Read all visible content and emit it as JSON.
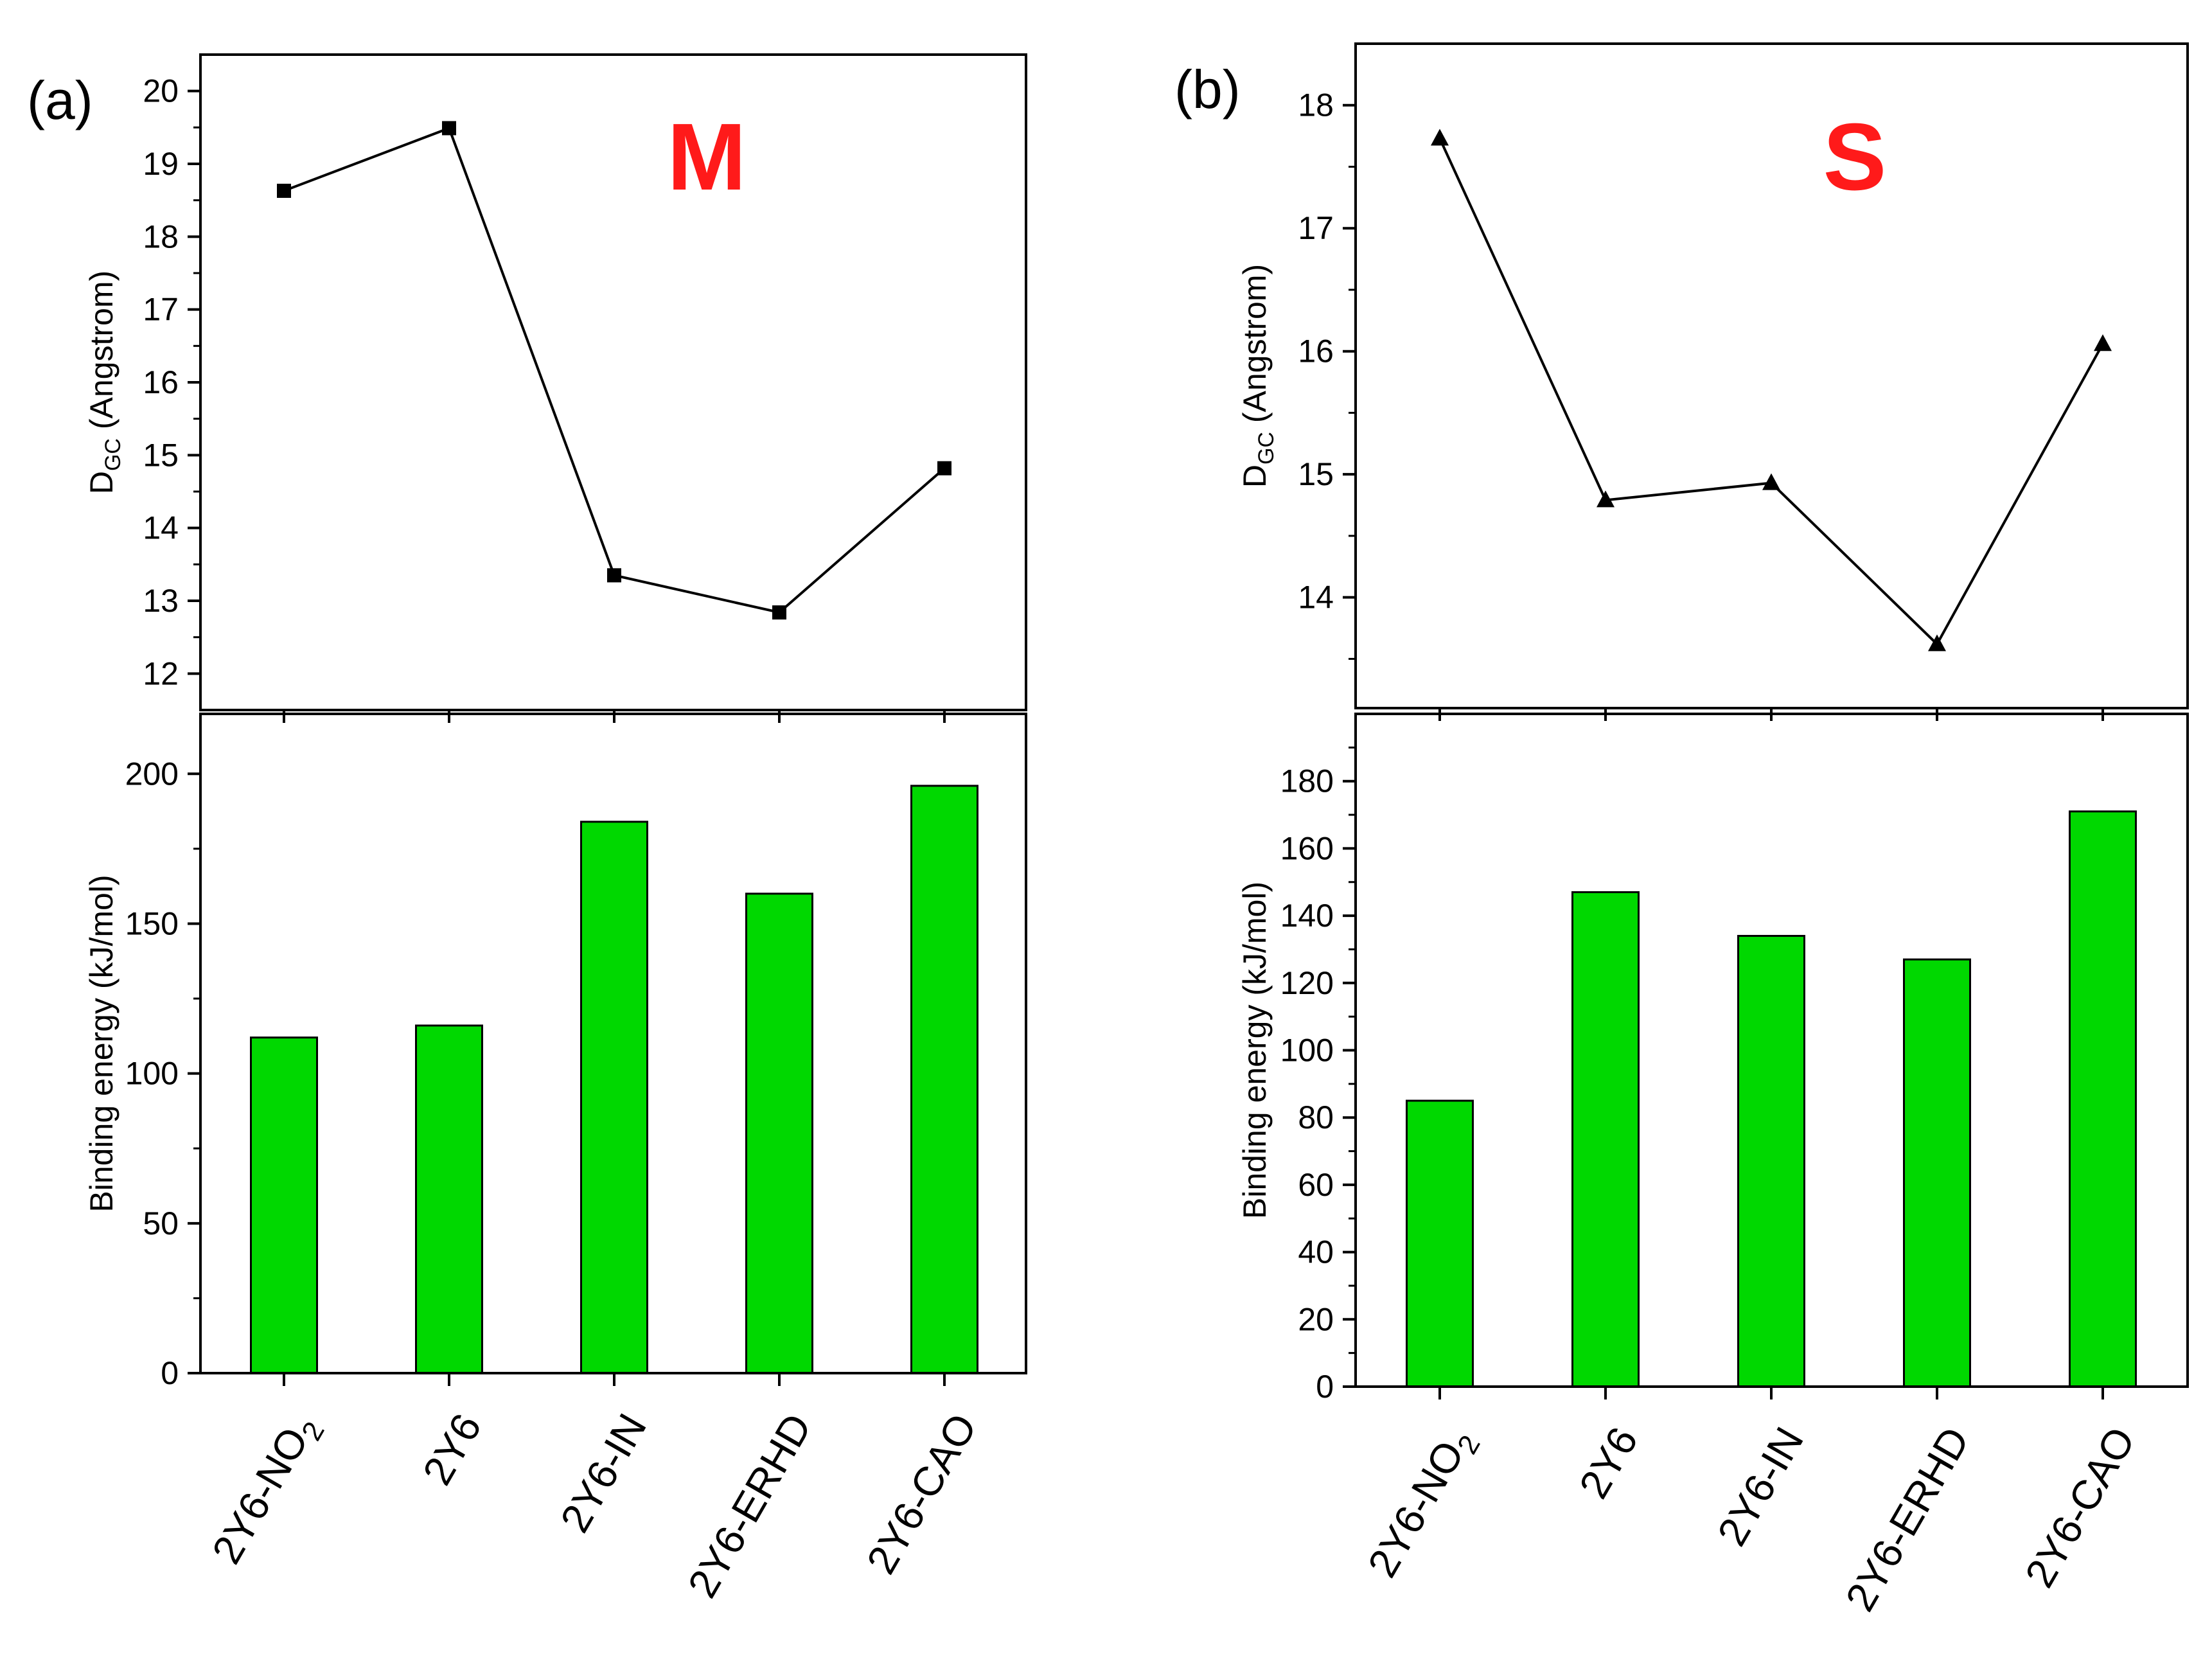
{
  "figure": {
    "panel_a_label": "(a)",
    "panel_b_label": "(b)",
    "panel_a_mark": "M",
    "panel_b_mark": "S",
    "mark_color": "#ff1a1a",
    "bar_color": "#00d800",
    "line_color": "#000000"
  },
  "y_labels": {
    "dgc_main": "D",
    "dgc_sub": "GC",
    "dgc_unit": " (Angstrom)",
    "binding": "Binding energy (kJ/mol)"
  },
  "categories": [
    {
      "main": "2Y6-NO",
      "sub": "2"
    },
    {
      "main": "2Y6",
      "sub": ""
    },
    {
      "main": "2Y6-IN",
      "sub": ""
    },
    {
      "main": "2Y6-ERHD",
      "sub": ""
    },
    {
      "main": "2Y6-CAO",
      "sub": ""
    }
  ],
  "chart_data": [
    {
      "panel": "(a)",
      "type": "line",
      "title": "M",
      "marker": "square",
      "categories": [
        "2Y6-NO2",
        "2Y6",
        "2Y6-IN",
        "2Y6-ERHD",
        "2Y6-CAO"
      ],
      "values": [
        18.63,
        19.49,
        13.35,
        12.84,
        14.82
      ],
      "ylabel": "DGC (Angstrom)",
      "ylim": [
        11.5,
        20.5
      ],
      "yticks": [
        12,
        13,
        14,
        15,
        16,
        17,
        18,
        19,
        20
      ]
    },
    {
      "panel": "(a)",
      "type": "bar",
      "categories": [
        "2Y6-NO2",
        "2Y6",
        "2Y6-IN",
        "2Y6-ERHD",
        "2Y6-CAO"
      ],
      "values": [
        112,
        116,
        184,
        160,
        196
      ],
      "ylabel": "Binding energy (kJ/mol)",
      "ylim": [
        0,
        220
      ],
      "yticks": [
        0,
        50,
        100,
        150,
        200
      ]
    },
    {
      "panel": "(b)",
      "type": "line",
      "title": "S",
      "marker": "triangle",
      "categories": [
        "2Y6-NO2",
        "2Y6",
        "2Y6-IN",
        "2Y6-ERHD",
        "2Y6-CAO"
      ],
      "values": [
        17.73,
        14.79,
        14.93,
        13.62,
        16.06
      ],
      "ylabel": "DGC (Angstrom)",
      "ylim": [
        13.1,
        18.5
      ],
      "yticks": [
        14,
        15,
        16,
        17,
        18
      ]
    },
    {
      "panel": "(b)",
      "type": "bar",
      "categories": [
        "2Y6-NO2",
        "2Y6",
        "2Y6-IN",
        "2Y6-ERHD",
        "2Y6-CAO"
      ],
      "values": [
        85,
        147,
        134,
        127,
        171
      ],
      "ylabel": "Binding energy (kJ/mol)",
      "ylim": [
        0,
        200
      ],
      "yticks": [
        0,
        20,
        40,
        60,
        80,
        100,
        120,
        140,
        160,
        180
      ]
    }
  ]
}
